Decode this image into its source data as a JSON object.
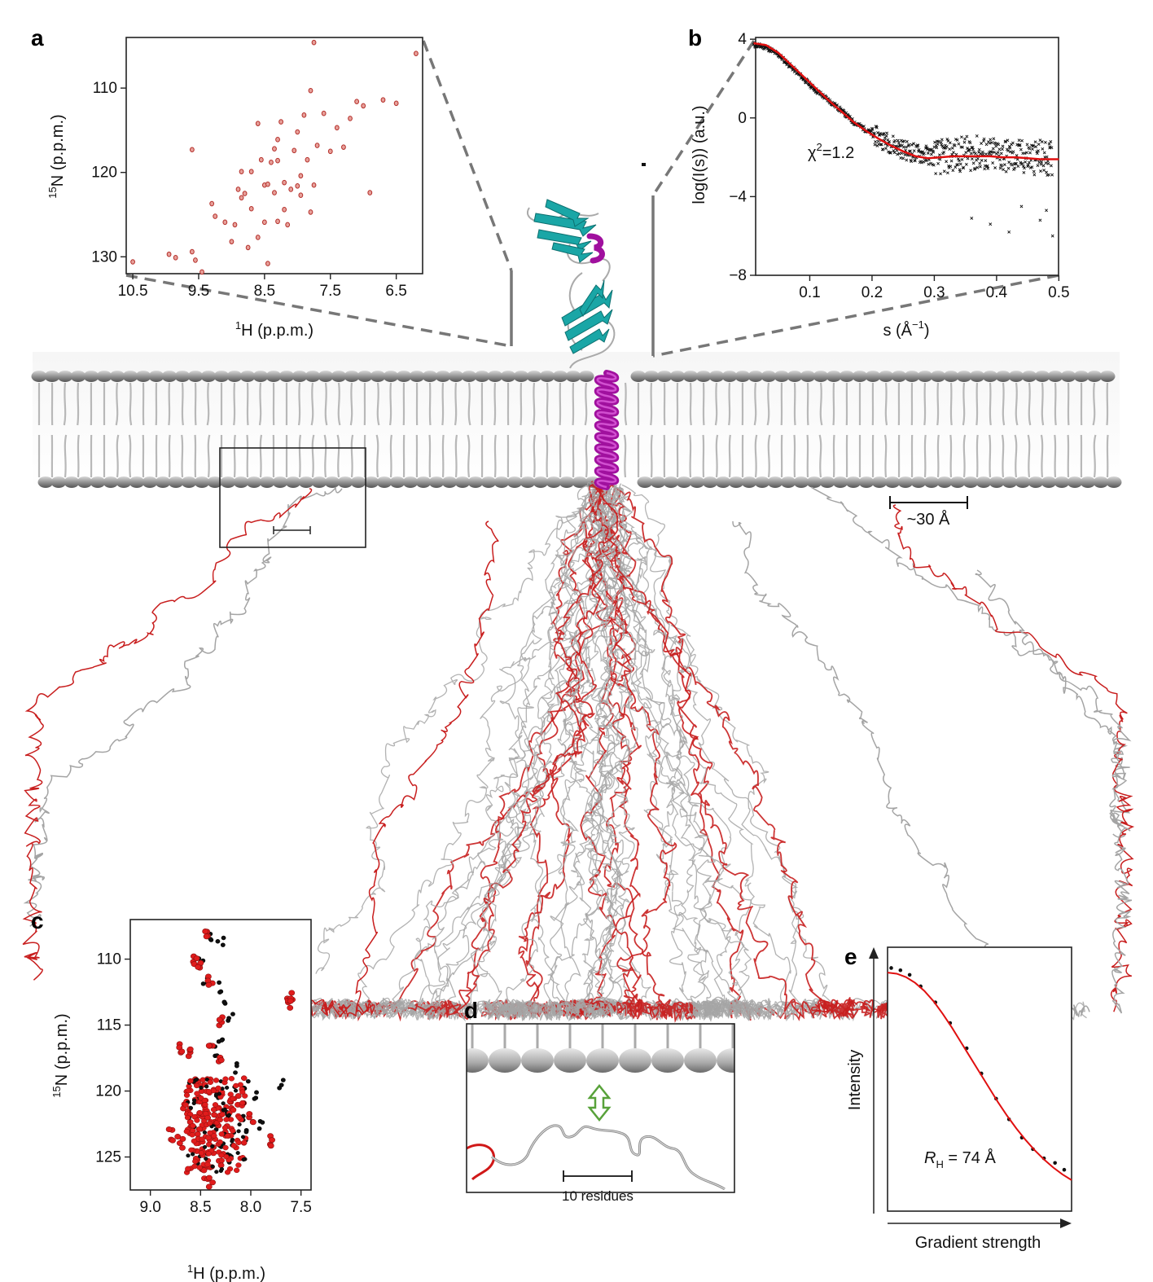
{
  "panels": {
    "a": {
      "label": "a",
      "xlabel_sup": "1",
      "xlabel": "H (p.p.m.)",
      "ylabel_sup": "15",
      "ylabel": "N (p.p.m.)",
      "xticks": [
        "10.5",
        "9.5",
        "8.5",
        "7.5",
        "6.5"
      ],
      "yticks": [
        "110",
        "120",
        "130"
      ]
    },
    "b": {
      "label": "b",
      "xlabel": "s (Å",
      "xlabel_sup": "−1",
      "xlabel_close": ")",
      "ylabel": "log(I(s)) (a.u.)",
      "annotation": "χ",
      "annotation_sup": "2",
      "annotation_rest": "=1.2",
      "xticks": [
        "0.1",
        "0.2",
        "0.3",
        "0.4",
        "0.5"
      ],
      "yticks": [
        "4",
        "0",
        "−4",
        "−8"
      ]
    },
    "c": {
      "label": "c",
      "xlabel_sup": "1",
      "xlabel": "H (p.p.m.)",
      "ylabel_sup": "15",
      "ylabel": "N (p.p.m.)",
      "xticks": [
        "9.0",
        "8.5",
        "8.0",
        "7.5"
      ],
      "yticks": [
        "110",
        "115",
        "120",
        "125"
      ]
    },
    "d": {
      "label": "d",
      "scale_label": "10 residues"
    },
    "e": {
      "label": "e",
      "xlabel": "Gradient strength",
      "ylabel": "Intensity",
      "annotation_r": "R",
      "annotation_sub": "H",
      "annotation_rest": " = 74 Å"
    },
    "main": {
      "scale_label": "~30 Å"
    }
  },
  "colors": {
    "accent_red": "#d42020",
    "helix_magenta": "#a0109e",
    "sheet_cyan": "#1aa6a6",
    "chain_grey": "#9a9a9a",
    "guide_dash": "#777777"
  },
  "chart_data": [
    {
      "panel": "a",
      "type": "scatter",
      "x_axis": "1H chemical shift (p.p.m.), reversed",
      "xlim": [
        10.6,
        6.1
      ],
      "ylim": [
        104,
        132
      ],
      "y_reversed": true,
      "points": [
        [
          10.5,
          130.6
        ],
        [
          9.95,
          129.7
        ],
        [
          9.85,
          130.1
        ],
        [
          9.6,
          129.4
        ],
        [
          9.55,
          130.4
        ],
        [
          9.45,
          131.8
        ],
        [
          9.3,
          123.7
        ],
        [
          9.25,
          125.2
        ],
        [
          9.1,
          125.9
        ],
        [
          9.0,
          128.2
        ],
        [
          8.95,
          126.2
        ],
        [
          8.9,
          122.0
        ],
        [
          8.85,
          123.0
        ],
        [
          8.85,
          119.9
        ],
        [
          8.8,
          122.5
        ],
        [
          8.75,
          128.9
        ],
        [
          8.7,
          124.3
        ],
        [
          8.7,
          119.9
        ],
        [
          8.6,
          127.7
        ],
        [
          8.55,
          118.5
        ],
        [
          8.5,
          121.5
        ],
        [
          8.5,
          125.9
        ],
        [
          8.45,
          121.4
        ],
        [
          8.4,
          118.8
        ],
        [
          8.35,
          122.4
        ],
        [
          8.35,
          117.2
        ],
        [
          8.3,
          116.1
        ],
        [
          8.3,
          118.6
        ],
        [
          8.25,
          114.0
        ],
        [
          8.2,
          121.2
        ],
        [
          8.2,
          124.4
        ],
        [
          8.15,
          126.2
        ],
        [
          8.1,
          122.0
        ],
        [
          8.05,
          117.4
        ],
        [
          8.0,
          115.2
        ],
        [
          7.95,
          120.4
        ],
        [
          7.95,
          122.7
        ],
        [
          7.9,
          113.2
        ],
        [
          7.85,
          118.5
        ],
        [
          7.8,
          124.7
        ],
        [
          7.8,
          110.3
        ],
        [
          7.75,
          121.5
        ],
        [
          7.7,
          116.8
        ],
        [
          7.6,
          113.0
        ],
        [
          7.5,
          117.5
        ],
        [
          7.4,
          114.7
        ],
        [
          7.3,
          117.0
        ],
        [
          7.2,
          113.6
        ],
        [
          7.1,
          111.6
        ],
        [
          7.0,
          112.1
        ],
        [
          6.9,
          122.4
        ],
        [
          6.7,
          111.4
        ],
        [
          6.5,
          111.8
        ],
        [
          6.2,
          105.9
        ],
        [
          7.75,
          104.6
        ],
        [
          8.3,
          125.8
        ],
        [
          8.6,
          114.2
        ],
        [
          9.6,
          117.3
        ],
        [
          8.45,
          130.8
        ],
        [
          8.0,
          121.6
        ]
      ]
    },
    {
      "panel": "b",
      "type": "scatter",
      "xlabel": "s (Å−1)",
      "ylabel": "log(I(s)) (a.u.)",
      "xlim": [
        0.0,
        0.51
      ],
      "ylim": [
        -8,
        5
      ],
      "series": [
        {
          "name": "",
          "kind": "experimental",
          "x": [
            0.01,
            0.03,
            0.05,
            0.07,
            0.09,
            0.11,
            0.13,
            0.15,
            0.17,
            0.19,
            0.21,
            0.23,
            0.25,
            0.27,
            0.29,
            0.31,
            0.33,
            0.35,
            0.37,
            0.39,
            0.41,
            0.43,
            0.45,
            0.47,
            0.49
          ],
          "y": [
            3.7,
            3.6,
            3.2,
            2.6,
            2.0,
            1.4,
            0.9,
            0.4,
            -0.2,
            -0.6,
            -1.0,
            -1.3,
            -1.6,
            -1.8,
            -1.9,
            -2.0,
            -1.9,
            -1.8,
            -1.8,
            -1.9,
            -1.9,
            -2.0,
            -2.0,
            -2.0,
            -2.1
          ]
        },
        {
          "name": "",
          "kind": "fit",
          "x": [
            0.01,
            0.03,
            0.05,
            0.07,
            0.09,
            0.11,
            0.13,
            0.15,
            0.17,
            0.19,
            0.21,
            0.23,
            0.25,
            0.27,
            0.29,
            0.31,
            0.33,
            0.35,
            0.37,
            0.39,
            0.41,
            0.43,
            0.45,
            0.47,
            0.49,
            0.5
          ],
          "y": [
            3.8,
            3.7,
            3.3,
            2.7,
            2.1,
            1.5,
            0.9,
            0.35,
            -0.2,
            -0.65,
            -1.05,
            -1.4,
            -1.7,
            -1.95,
            -2.05,
            -2.0,
            -1.95,
            -1.95,
            -1.95,
            -1.95,
            -2.0,
            -2.0,
            -2.05,
            -2.1,
            -2.1,
            -2.1
          ]
        }
      ]
    },
    {
      "panel": "c",
      "type": "scatter",
      "xlim": [
        9.2,
        7.4
      ],
      "ylim": [
        107,
        127.5
      ],
      "y_reversed": true,
      "series": [
        {
          "name": "",
          "color": "#111111",
          "points": [
            [
              8.4,
              108.2
            ],
            [
              8.3,
              108.7
            ],
            [
              8.5,
              110.0
            ],
            [
              8.45,
              111.6
            ],
            [
              8.3,
              112.1
            ],
            [
              8.25,
              113.0
            ],
            [
              8.2,
              114.5
            ],
            [
              8.3,
              116.2
            ],
            [
              8.35,
              117.0
            ],
            [
              8.15,
              118.2
            ],
            [
              8.05,
              119.6
            ],
            [
              7.95,
              120.3
            ],
            [
              7.7,
              119.5
            ],
            [
              8.25,
              121.5
            ],
            [
              8.1,
              122.0
            ],
            [
              8.35,
              122.8
            ],
            [
              8.05,
              123.4
            ],
            [
              8.3,
              124.2
            ],
            [
              8.5,
              125.7
            ],
            [
              8.2,
              125.1
            ],
            [
              7.9,
              122.5
            ]
          ]
        },
        {
          "name": "",
          "color": "#e01c1c",
          "points": [
            [
              8.45,
              108.2
            ],
            [
              8.55,
              110.0
            ],
            [
              8.5,
              110.7
            ],
            [
              8.4,
              111.6
            ],
            [
              7.62,
              113.0
            ],
            [
              7.58,
              113.4
            ],
            [
              8.3,
              114.6
            ],
            [
              8.4,
              116.3
            ],
            [
              8.6,
              117.0
            ],
            [
              8.7,
              116.8
            ],
            [
              8.3,
              117.5
            ],
            [
              8.55,
              119.0
            ],
            [
              8.5,
              120.4
            ],
            [
              8.65,
              121.2
            ],
            [
              8.45,
              121.9
            ],
            [
              8.35,
              122.2
            ],
            [
              8.6,
              122.8
            ],
            [
              8.25,
              123.0
            ],
            [
              8.5,
              123.6
            ],
            [
              8.4,
              124.4
            ],
            [
              8.55,
              124.9
            ],
            [
              8.3,
              125.2
            ],
            [
              8.45,
              126.2
            ],
            [
              8.4,
              127.0
            ],
            [
              8.2,
              121.0
            ],
            [
              8.1,
              120.7
            ],
            [
              8.7,
              123.9
            ],
            [
              8.8,
              123.3
            ],
            [
              8.0,
              122.0
            ],
            [
              7.8,
              123.8
            ]
          ]
        }
      ]
    },
    {
      "panel": "e",
      "type": "scatter",
      "xlabel": "Gradient strength",
      "ylabel": "Intensity",
      "series": [
        {
          "name": "",
          "kind": "data",
          "x": [
            0.02,
            0.07,
            0.12,
            0.18,
            0.26,
            0.34,
            0.43,
            0.51,
            0.59,
            0.66,
            0.73,
            0.79,
            0.85,
            0.91,
            0.96
          ],
          "y": [
            1.0,
            0.99,
            0.97,
            0.92,
            0.85,
            0.76,
            0.65,
            0.54,
            0.43,
            0.34,
            0.26,
            0.21,
            0.17,
            0.15,
            0.12
          ]
        },
        {
          "name": "",
          "kind": "fit",
          "x": [
            0.0,
            0.05,
            0.1,
            0.15,
            0.2,
            0.25,
            0.3,
            0.35,
            0.4,
            0.45,
            0.5,
            0.55,
            0.6,
            0.65,
            0.7,
            0.75,
            0.8,
            0.85,
            0.9,
            0.95,
            1.0
          ],
          "y": [
            0.98,
            0.975,
            0.96,
            0.935,
            0.9,
            0.855,
            0.8,
            0.74,
            0.675,
            0.61,
            0.545,
            0.48,
            0.415,
            0.355,
            0.3,
            0.25,
            0.205,
            0.165,
            0.13,
            0.1,
            0.075
          ]
        }
      ]
    }
  ]
}
